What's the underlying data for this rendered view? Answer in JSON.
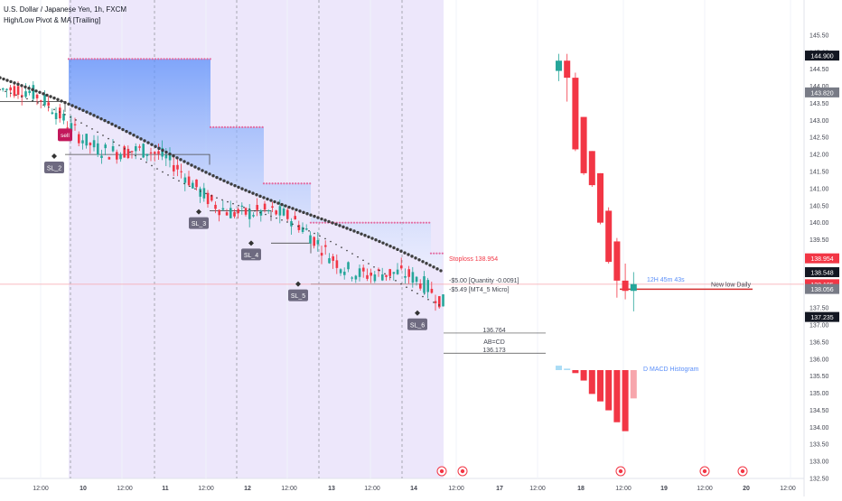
{
  "header": {
    "title": "U.S. Dollar / Japanese Yen, 1h, FXCM",
    "indicator": "High/Low Pivot & MA [Trailing]"
  },
  "colors": {
    "bull": "#26a69a",
    "bear": "#f23645",
    "bear_light": "#f7a6ac",
    "bull_light": "#b2dfdb",
    "ma_dots": "#3d3d3d",
    "pivot_dots": "#e36aa0",
    "band_top": "#5b8ff9",
    "band_bottom": "#eaf2ff",
    "highlight_bg": "#ede7fb",
    "stoploss": "#f23645",
    "level_line": "#d32f2f",
    "label_bg": "#6e6a80",
    "sell_bg": "#c2185b",
    "macd_label": "#5b8ff9",
    "axis_label_bg": "#131722",
    "axis_label_grey_bg": "#787b86",
    "grid": "#f0f3fa"
  },
  "chart_data": {
    "type": "candlestick",
    "symbol": "USDJPY",
    "timeframe": "1h",
    "ylim": [
      132.5,
      146.0
    ],
    "y_ticks": [
      132.5,
      133.0,
      133.5,
      134.0,
      134.5,
      135.0,
      135.5,
      136.0,
      136.5,
      137.0,
      137.5,
      138.0,
      138.5,
      139.0,
      139.5,
      140.0,
      140.5,
      141.0,
      141.5,
      142.0,
      142.5,
      143.0,
      143.5,
      144.0,
      144.5,
      145.0,
      145.5
    ],
    "x_tick_labels": [
      "12:00",
      "10",
      "12:00",
      "11",
      "12:00",
      "12",
      "12:00",
      "13",
      "12:00",
      "14",
      "12:00",
      "17",
      "12:00",
      "18",
      "12:00",
      "19",
      "12:00",
      "20",
      "12:00"
    ],
    "price_labels": [
      {
        "value": 144.9,
        "text": "144.900",
        "style": "dark"
      },
      {
        "value": 143.82,
        "text": "143.820",
        "style": "grey"
      },
      {
        "value": 138.954,
        "text": "138.954",
        "style": "red"
      },
      {
        "value": 138.548,
        "text": "138.548",
        "style": "dark"
      },
      {
        "value": 138.195,
        "text": "138.195",
        "style": "red"
      },
      {
        "value": 138.056,
        "text": "138.056",
        "style": "grey"
      },
      {
        "value": 137.235,
        "text": "137.235",
        "style": "dark"
      }
    ],
    "daily_candles": [
      {
        "o": 144.45,
        "h": 144.95,
        "l": 144.15,
        "c": 144.75
      },
      {
        "o": 144.75,
        "h": 144.95,
        "l": 143.55,
        "c": 144.25
      },
      {
        "o": 144.25,
        "h": 144.4,
        "l": 142.1,
        "c": 142.15
      },
      {
        "o": 143.1,
        "h": 143.1,
        "l": 141.4,
        "c": 141.45
      },
      {
        "o": 142.1,
        "h": 142.1,
        "l": 141.05,
        "c": 141.1
      },
      {
        "o": 141.45,
        "h": 141.45,
        "l": 139.95,
        "c": 140.0
      },
      {
        "o": 140.35,
        "h": 140.45,
        "l": 138.8,
        "c": 138.85
      },
      {
        "o": 139.45,
        "h": 139.55,
        "l": 137.8,
        "c": 138.3
      },
      {
        "o": 138.3,
        "h": 138.8,
        "l": 137.75,
        "c": 138.0
      },
      {
        "o": 138.0,
        "h": 138.55,
        "l": 137.4,
        "c": 138.2
      }
    ],
    "macd_histogram": [
      0.15,
      0.05,
      -0.1,
      -0.35,
      -0.8,
      -1.05,
      -1.35,
      -1.75,
      -2.05,
      -0.95
    ],
    "stoploss": {
      "value": 138.954,
      "label": "Stoploss  138.954"
    },
    "position_lines": [
      "-$5.00 [Quantity -0.0091]",
      "-$5.49 [MT4_5 Micro]"
    ],
    "new_low": {
      "value": 138.05,
      "label": "New low Daily"
    },
    "countdown": "12H 45m 43s",
    "abcd": {
      "level_high": 136.764,
      "label_high": "136.764",
      "label_mid": "AB=CD",
      "level_low": 136.173,
      "label_low": "136.173"
    },
    "macd_label": "D MACD Histogram",
    "sell_label": "sell",
    "swing_lows": [
      {
        "label": "SL_2",
        "price": 141.95
      },
      {
        "label": "SL_3",
        "price": 140.32
      },
      {
        "label": "SL_4",
        "price": 139.4
      },
      {
        "label": "SL_5",
        "price": 138.2
      },
      {
        "label": "SL_6",
        "price": 137.35
      }
    ]
  }
}
